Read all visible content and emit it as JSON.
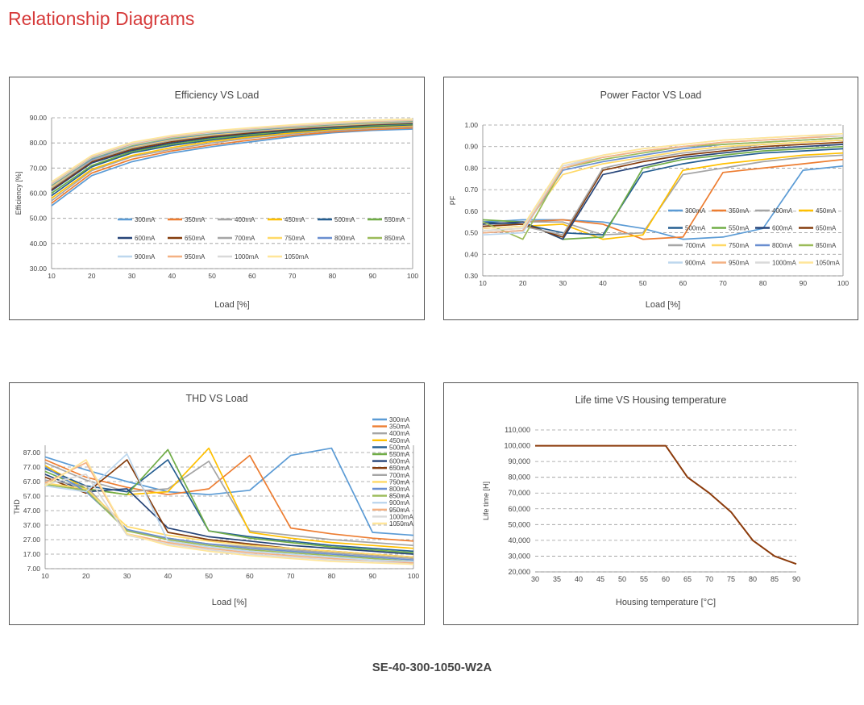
{
  "page": {
    "heading": "Relationship Diagrams",
    "model": "SE-40-300-1050-W2A"
  },
  "chart_data": [
    {
      "id": "efficiency",
      "type": "line",
      "title": "Efficiency VS Load",
      "xlabel": "Load [%]",
      "ylabel": "Efficiency [%]",
      "xlim": [
        10,
        100
      ],
      "ylim": [
        30,
        90
      ],
      "xticks": [
        10,
        20,
        30,
        40,
        50,
        60,
        70,
        80,
        90,
        100
      ],
      "xtick_labels": [
        "10",
        "20",
        "30",
        "40",
        "50",
        "60",
        "70",
        "80",
        "90",
        "100"
      ],
      "yticks": [
        30,
        40,
        50,
        60,
        70,
        80,
        90
      ],
      "ytick_labels": [
        "30.00",
        "40.00",
        "50.00",
        "60.00",
        "70.00",
        "80.00",
        "90.00"
      ],
      "grid": "horizontal-dashed",
      "legend": "inside",
      "x": [
        10,
        20,
        30,
        40,
        50,
        60,
        70,
        80,
        90,
        100
      ],
      "series": [
        {
          "name": "300mA",
          "color": "#5b9bd5",
          "values": [
            55,
            67,
            72.5,
            76,
            78.5,
            80.5,
            82.5,
            84,
            85,
            85.5
          ]
        },
        {
          "name": "350mA",
          "color": "#ed7d31",
          "values": [
            56,
            68,
            73.5,
            76.8,
            79.2,
            81.2,
            83,
            84.4,
            85.3,
            86
          ]
        },
        {
          "name": "400mA",
          "color": "#a5a5a5",
          "values": [
            57,
            69,
            74.5,
            77.5,
            80,
            82,
            83.6,
            84.9,
            85.8,
            86.5
          ]
        },
        {
          "name": "450mA",
          "color": "#ffc000",
          "values": [
            58,
            69.5,
            75,
            78.2,
            80.6,
            82.5,
            84,
            85.3,
            86.2,
            86.9
          ]
        },
        {
          "name": "500mA",
          "color": "#255e91",
          "values": [
            59,
            70.5,
            76,
            79,
            81.2,
            83,
            84.5,
            85.7,
            86.6,
            87.2
          ]
        },
        {
          "name": "550mA",
          "color": "#70ad47",
          "values": [
            60,
            71,
            76.5,
            79.5,
            81.7,
            83.4,
            84.9,
            86,
            86.9,
            87.5
          ]
        },
        {
          "name": "600mA",
          "color": "#264478",
          "values": [
            61,
            72,
            77,
            80,
            82.2,
            83.8,
            85.2,
            86.3,
            87.2,
            87.8
          ]
        },
        {
          "name": "650mA",
          "color": "#843c0c",
          "values": [
            61.5,
            72.5,
            77.5,
            80.5,
            82.6,
            84.2,
            85.5,
            86.6,
            87.4,
            88
          ]
        },
        {
          "name": "700mA",
          "color": "#a6a6a6",
          "values": [
            62,
            73,
            78,
            81,
            83,
            84.5,
            85.8,
            86.8,
            87.6,
            88.2
          ]
        },
        {
          "name": "750mA",
          "color": "#ffd966",
          "values": [
            62.5,
            73.5,
            78.4,
            81.4,
            83.3,
            84.8,
            86,
            87,
            87.8,
            88.4
          ]
        },
        {
          "name": "800mA",
          "color": "#698ed0",
          "values": [
            63,
            73.5,
            78.7,
            81.7,
            83.6,
            85,
            86.2,
            87.2,
            88,
            88.6
          ]
        },
        {
          "name": "850mA",
          "color": "#9bbb59",
          "values": [
            63.3,
            74,
            79,
            82,
            83.9,
            85.3,
            86.4,
            87.4,
            88.2,
            88.8
          ]
        },
        {
          "name": "900mA",
          "color": "#bdd7ee",
          "values": [
            63.6,
            74.2,
            79.3,
            82.3,
            84.1,
            85.5,
            86.6,
            87.6,
            88.4,
            89
          ]
        },
        {
          "name": "950mA",
          "color": "#f4b183",
          "values": [
            63.9,
            74.5,
            79.6,
            82.5,
            84.4,
            85.7,
            86.8,
            87.8,
            88.6,
            89.1
          ]
        },
        {
          "name": "1000mA",
          "color": "#d9d9d9",
          "values": [
            64.2,
            74.8,
            79.9,
            82.8,
            84.6,
            85.9,
            87,
            88,
            88.8,
            89.3
          ]
        },
        {
          "name": "1050mA",
          "color": "#ffe699",
          "values": [
            64.5,
            75,
            80.2,
            83,
            84.8,
            86.1,
            87.2,
            88.2,
            89,
            89.5
          ]
        }
      ]
    },
    {
      "id": "pf",
      "type": "line",
      "title": "Power Factor VS Load",
      "xlabel": "Load [%]",
      "ylabel": "PF",
      "xlim": [
        10,
        100
      ],
      "ylim": [
        0.3,
        1.0
      ],
      "xticks": [
        10,
        20,
        30,
        40,
        50,
        60,
        70,
        80,
        90,
        100
      ],
      "xtick_labels": [
        "10",
        "20",
        "30",
        "40",
        "50",
        "60",
        "70",
        "80",
        "90",
        "100"
      ],
      "yticks": [
        0.3,
        0.4,
        0.5,
        0.6,
        0.7,
        0.8,
        0.9,
        1.0
      ],
      "ytick_labels": [
        "0.30",
        "0.40",
        "0.50",
        "0.60",
        "0.70",
        "0.80",
        "0.90",
        "1.00"
      ],
      "grid": "horizontal-dashed",
      "legend": "inside",
      "x": [
        10,
        20,
        30,
        40,
        50,
        60,
        70,
        80,
        90,
        100
      ],
      "series": [
        {
          "name": "300mA",
          "color": "#5b9bd5",
          "values": [
            0.55,
            0.56,
            0.56,
            0.55,
            0.52,
            0.47,
            0.48,
            0.52,
            0.79,
            0.81
          ]
        },
        {
          "name": "350mA",
          "color": "#ed7d31",
          "values": [
            0.54,
            0.55,
            0.56,
            0.54,
            0.47,
            0.48,
            0.78,
            0.8,
            0.82,
            0.84
          ]
        },
        {
          "name": "400mA",
          "color": "#a5a5a5",
          "values": [
            0.53,
            0.55,
            0.55,
            0.49,
            0.5,
            0.77,
            0.8,
            0.83,
            0.85,
            0.86
          ]
        },
        {
          "name": "450mA",
          "color": "#ffc000",
          "values": [
            0.52,
            0.53,
            0.54,
            0.47,
            0.49,
            0.79,
            0.82,
            0.84,
            0.86,
            0.87
          ]
        },
        {
          "name": "500mA",
          "color": "#255e91",
          "values": [
            0.55,
            0.54,
            0.5,
            0.49,
            0.78,
            0.82,
            0.85,
            0.87,
            0.88,
            0.89
          ]
        },
        {
          "name": "550mA",
          "color": "#70ad47",
          "values": [
            0.56,
            0.55,
            0.47,
            0.48,
            0.8,
            0.84,
            0.86,
            0.88,
            0.89,
            0.9
          ]
        },
        {
          "name": "600mA",
          "color": "#264478",
          "values": [
            0.54,
            0.55,
            0.47,
            0.77,
            0.81,
            0.85,
            0.87,
            0.89,
            0.9,
            0.91
          ]
        },
        {
          "name": "650mA",
          "color": "#843c0c",
          "values": [
            0.53,
            0.54,
            0.48,
            0.79,
            0.83,
            0.86,
            0.88,
            0.9,
            0.91,
            0.92
          ]
        },
        {
          "name": "700mA",
          "color": "#a6a6a6",
          "values": [
            0.52,
            0.53,
            0.49,
            0.8,
            0.84,
            0.87,
            0.89,
            0.91,
            0.92,
            0.93
          ]
        },
        {
          "name": "750mA",
          "color": "#ffd966",
          "values": [
            0.51,
            0.52,
            0.77,
            0.82,
            0.85,
            0.88,
            0.9,
            0.91,
            0.92,
            0.93
          ]
        },
        {
          "name": "800mA",
          "color": "#698ed0",
          "values": [
            0.5,
            0.51,
            0.79,
            0.83,
            0.86,
            0.89,
            0.91,
            0.92,
            0.93,
            0.94
          ]
        },
        {
          "name": "850mA",
          "color": "#9bbb59",
          "values": [
            0.55,
            0.47,
            0.8,
            0.84,
            0.87,
            0.9,
            0.91,
            0.92,
            0.93,
            0.94
          ]
        },
        {
          "name": "900mA",
          "color": "#bdd7ee",
          "values": [
            0.49,
            0.5,
            0.81,
            0.85,
            0.88,
            0.9,
            0.92,
            0.93,
            0.94,
            0.95
          ]
        },
        {
          "name": "950mA",
          "color": "#f4b183",
          "values": [
            0.5,
            0.51,
            0.8,
            0.85,
            0.88,
            0.9,
            0.92,
            0.93,
            0.94,
            0.95
          ]
        },
        {
          "name": "1000mA",
          "color": "#d9d9d9",
          "values": [
            0.51,
            0.52,
            0.81,
            0.86,
            0.89,
            0.91,
            0.93,
            0.94,
            0.95,
            0.95
          ]
        },
        {
          "name": "1050mA",
          "color": "#ffe699",
          "values": [
            0.52,
            0.53,
            0.82,
            0.86,
            0.89,
            0.91,
            0.93,
            0.94,
            0.95,
            0.96
          ]
        }
      ]
    },
    {
      "id": "thd",
      "type": "line",
      "title": "THD VS Load",
      "xlabel": "Load [%]",
      "ylabel": "THD",
      "xlim": [
        10,
        100
      ],
      "ylim": [
        7,
        92
      ],
      "xticks": [
        10,
        20,
        30,
        40,
        50,
        60,
        70,
        80,
        90,
        100
      ],
      "xtick_labels": [
        "10",
        "20",
        "30",
        "40",
        "50",
        "60",
        "70",
        "80",
        "90",
        "100"
      ],
      "yticks": [
        7,
        17,
        27,
        37,
        47,
        57,
        67,
        77,
        87
      ],
      "ytick_labels": [
        "7.00",
        "17.00",
        "27.00",
        "37.00",
        "47.00",
        "57.00",
        "67.00",
        "77.00",
        "87.00"
      ],
      "grid": "horizontal-dashed",
      "legend": "right",
      "x": [
        10,
        20,
        30,
        40,
        50,
        60,
        70,
        80,
        90,
        100
      ],
      "series": [
        {
          "name": "300mA",
          "color": "#5b9bd5",
          "values": [
            84,
            75,
            67,
            60,
            58,
            61,
            85,
            90,
            32,
            30
          ]
        },
        {
          "name": "350mA",
          "color": "#ed7d31",
          "values": [
            82,
            70,
            63,
            58,
            62,
            85,
            35,
            31,
            28,
            26
          ]
        },
        {
          "name": "400mA",
          "color": "#a5a5a5",
          "values": [
            80,
            68,
            60,
            62,
            81,
            33,
            30,
            27,
            25,
            23
          ]
        },
        {
          "name": "450mA",
          "color": "#ffc000",
          "values": [
            78,
            62,
            58,
            60,
            90,
            32,
            28,
            25,
            23,
            21
          ]
        },
        {
          "name": "500mA",
          "color": "#255e91",
          "values": [
            76,
            64,
            60,
            82,
            33,
            29,
            26,
            23,
            21,
            19
          ]
        },
        {
          "name": "550mA",
          "color": "#70ad47",
          "values": [
            74,
            62,
            58,
            89,
            33,
            28,
            25,
            22,
            20,
            18
          ]
        },
        {
          "name": "600mA",
          "color": "#264478",
          "values": [
            72,
            60,
            62,
            35,
            29,
            26,
            23,
            21,
            19,
            17
          ]
        },
        {
          "name": "650mA",
          "color": "#843c0c",
          "values": [
            70,
            59,
            82,
            32,
            27,
            24,
            21,
            19,
            17,
            15
          ]
        },
        {
          "name": "700mA",
          "color": "#a6a6a6",
          "values": [
            68,
            64,
            33,
            28,
            24,
            22,
            20,
            18,
            16,
            14
          ]
        },
        {
          "name": "750mA",
          "color": "#ffd966",
          "values": [
            66,
            62,
            36,
            30,
            26,
            23,
            21,
            19,
            17,
            15
          ]
        },
        {
          "name": "800mA",
          "color": "#698ed0",
          "values": [
            77,
            60,
            34,
            28,
            24,
            21,
            19,
            17,
            15,
            13
          ]
        },
        {
          "name": "850mA",
          "color": "#9bbb59",
          "values": [
            65,
            61,
            33,
            27,
            23,
            20,
            18,
            16,
            14,
            12
          ]
        },
        {
          "name": "900mA",
          "color": "#bdd7ee",
          "values": [
            64,
            60,
            86,
            26,
            22,
            19,
            17,
            15,
            13,
            12
          ]
        },
        {
          "name": "950mA",
          "color": "#f4b183",
          "values": [
            66,
            80,
            31,
            25,
            21,
            18,
            16,
            14,
            12,
            11
          ]
        },
        {
          "name": "1000mA",
          "color": "#d9d9d9",
          "values": [
            65,
            72,
            30,
            24,
            20,
            17,
            15,
            13,
            12,
            10
          ]
        },
        {
          "name": "1050mA",
          "color": "#ffe699",
          "values": [
            64,
            82,
            31,
            23,
            19,
            16,
            14,
            12,
            11,
            10
          ]
        }
      ]
    },
    {
      "id": "lifetime",
      "type": "line",
      "title": "Life time VS Housing temperature",
      "xlabel": "Housing temperature [°C]",
      "ylabel": "Life time [H]",
      "xlim": [
        30,
        90
      ],
      "ylim": [
        20000,
        110000
      ],
      "xticks": [
        30,
        35,
        40,
        45,
        50,
        55,
        60,
        65,
        70,
        75,
        80,
        85,
        90
      ],
      "xtick_labels": [
        "30",
        "35",
        "40",
        "45",
        "50",
        "55",
        "60",
        "65",
        "70",
        "75",
        "80",
        "85",
        "90"
      ],
      "yticks": [
        20000,
        30000,
        40000,
        50000,
        60000,
        70000,
        80000,
        90000,
        100000,
        110000
      ],
      "ytick_labels": [
        "20,000",
        "30,000",
        "40,000",
        "50,000",
        "60,000",
        "70,000",
        "80,000",
        "90,000",
        "100,000",
        "110,000"
      ],
      "grid": "horizontal-dashed",
      "legend": "none",
      "x": [
        30,
        35,
        40,
        45,
        50,
        55,
        60,
        65,
        70,
        75,
        80,
        85,
        90
      ],
      "series": [
        {
          "color": "#8b3a0a",
          "values": [
            100000,
            100000,
            100000,
            100000,
            100000,
            100000,
            100000,
            80000,
            70000,
            58000,
            40000,
            30000,
            25000
          ]
        }
      ]
    }
  ]
}
